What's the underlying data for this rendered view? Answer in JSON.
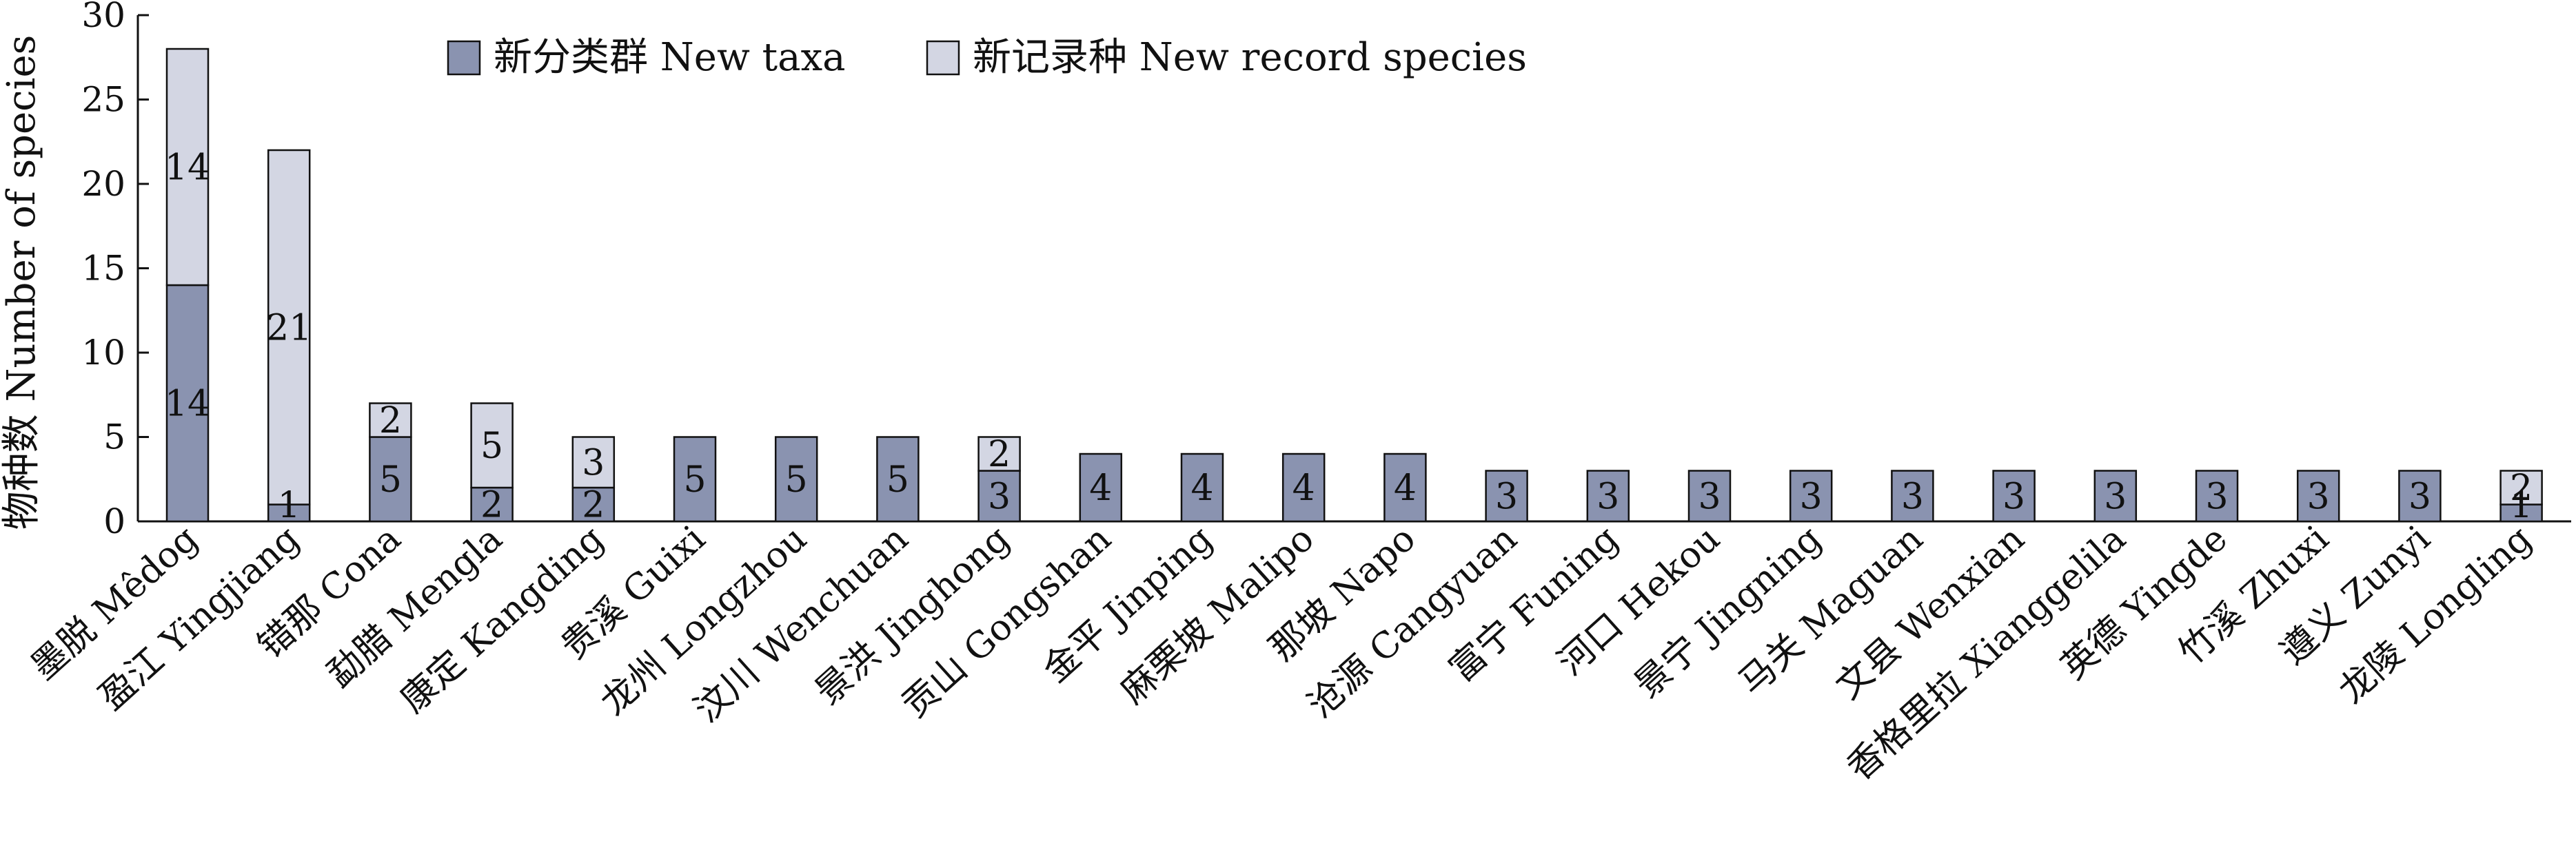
{
  "chart_data": {
    "type": "bar",
    "stacked": true,
    "ylabel": "物种数 Number of species",
    "xlabel": "",
    "ylim": [
      0,
      30
    ],
    "yticks": [
      0,
      5,
      10,
      15,
      20,
      25,
      30
    ],
    "legend_position": "top",
    "categories": [
      "墨脱 Mêdog",
      "盈江 Yingjiang",
      "错那 Cona",
      "勐腊 Mengla",
      "康定 Kangding",
      "贵溪 Guixi",
      "龙州 Longzhou",
      "汶川 Wenchuan",
      "景洪 Jinghong",
      "贡山 Gongshan",
      "金平 Jinping",
      "麻栗坡 Malipo",
      "那坡 Napo",
      "沧源 Cangyuan",
      "富宁 Funing",
      "河口 Hekou",
      "景宁 Jingning",
      "马关 Maguan",
      "文县 Wenxian",
      "香格里拉 Xianggelila",
      "英德 Yingde",
      "竹溪 Zhuxi",
      "遵义 Zunyi",
      "龙陵 Longling"
    ],
    "series": [
      {
        "name": "新分类群 New taxa",
        "color": "#8a93b0",
        "values": [
          14,
          1,
          5,
          2,
          2,
          5,
          5,
          5,
          3,
          4,
          4,
          4,
          4,
          3,
          3,
          3,
          3,
          3,
          3,
          3,
          3,
          3,
          3,
          1
        ]
      },
      {
        "name": "新记录种 New record species",
        "color": "#d3d6e3",
        "values": [
          14,
          21,
          2,
          5,
          3,
          0,
          0,
          0,
          2,
          0,
          0,
          0,
          0,
          0,
          0,
          0,
          0,
          0,
          0,
          0,
          0,
          0,
          0,
          2
        ]
      }
    ]
  }
}
